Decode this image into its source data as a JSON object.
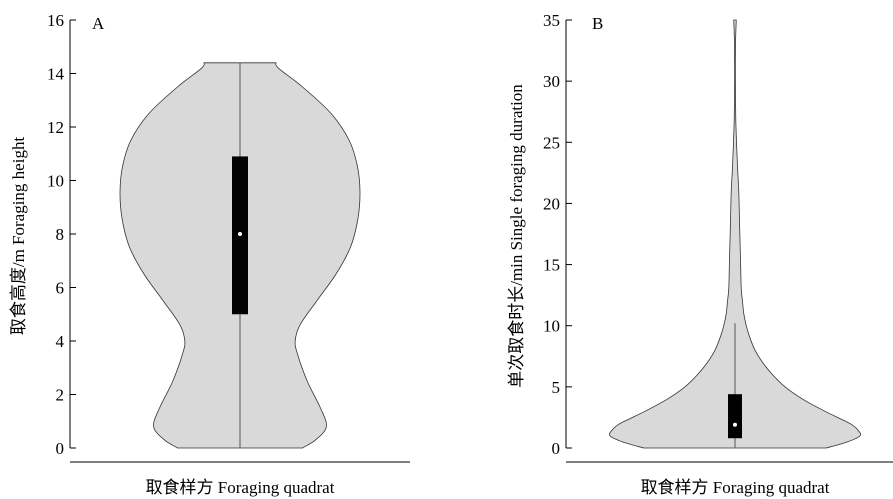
{
  "chart_data": [
    {
      "type": "violin",
      "panel_label": "A",
      "xlabel": "取食样方 Foraging quadrat",
      "ylabel": "取食高度/m Foraging height",
      "ylim": [
        0,
        16
      ],
      "yticks": [
        0,
        2,
        4,
        6,
        8,
        10,
        12,
        14,
        16
      ],
      "data_range": [
        0,
        14.4
      ],
      "box": {
        "q1": 5.0,
        "median": 8.0,
        "q3": 10.9,
        "whisker_low": 0,
        "whisker_high": 14.4
      },
      "density_profile": [
        [
          0,
          0.52
        ],
        [
          0.3,
          0.63
        ],
        [
          0.8,
          0.72
        ],
        [
          1.5,
          0.67
        ],
        [
          2.5,
          0.56
        ],
        [
          3.5,
          0.48
        ],
        [
          4.0,
          0.46
        ],
        [
          4.6,
          0.5
        ],
        [
          5.5,
          0.64
        ],
        [
          6.5,
          0.8
        ],
        [
          7.5,
          0.92
        ],
        [
          8.5,
          0.98
        ],
        [
          9.5,
          1.0
        ],
        [
          10.5,
          0.98
        ],
        [
          11.5,
          0.91
        ],
        [
          12.5,
          0.76
        ],
        [
          13.5,
          0.52
        ],
        [
          14.2,
          0.32
        ],
        [
          14.4,
          0.3
        ]
      ],
      "fill": "#d9d9d9",
      "box_color": "#000000",
      "grid": false
    },
    {
      "type": "violin",
      "panel_label": "B",
      "xlabel": "取食样方 Foraging quadrat",
      "ylabel": "单次取食时长/min Single foraging duration",
      "ylim": [
        0,
        35
      ],
      "yticks": [
        0,
        5,
        10,
        15,
        20,
        25,
        30,
        35
      ],
      "data_range": [
        0,
        35
      ],
      "box": {
        "q1": 0.8,
        "median": 1.9,
        "q3": 4.4,
        "whisker_low": 0,
        "whisker_high": 10.2
      },
      "density_profile": [
        [
          0,
          0.73
        ],
        [
          0.5,
          0.9
        ],
        [
          1.0,
          1.0
        ],
        [
          1.5,
          0.98
        ],
        [
          2.0,
          0.92
        ],
        [
          3.0,
          0.72
        ],
        [
          4.0,
          0.54
        ],
        [
          5.0,
          0.4
        ],
        [
          6.0,
          0.3
        ],
        [
          7.0,
          0.22
        ],
        [
          8.0,
          0.16
        ],
        [
          9.0,
          0.12
        ],
        [
          10.0,
          0.09
        ],
        [
          11.0,
          0.07
        ],
        [
          12.0,
          0.06
        ],
        [
          13.0,
          0.05
        ],
        [
          15.0,
          0.045
        ],
        [
          17.0,
          0.04
        ],
        [
          19.0,
          0.035
        ],
        [
          21.0,
          0.03
        ],
        [
          23.0,
          0.02
        ],
        [
          25.0,
          0.012
        ],
        [
          27.0,
          0.006
        ],
        [
          30.0,
          0.003
        ],
        [
          33.0,
          0.004
        ],
        [
          35.0,
          0.01
        ]
      ],
      "fill": "#d9d9d9",
      "box_color": "#000000",
      "grid": false
    }
  ]
}
